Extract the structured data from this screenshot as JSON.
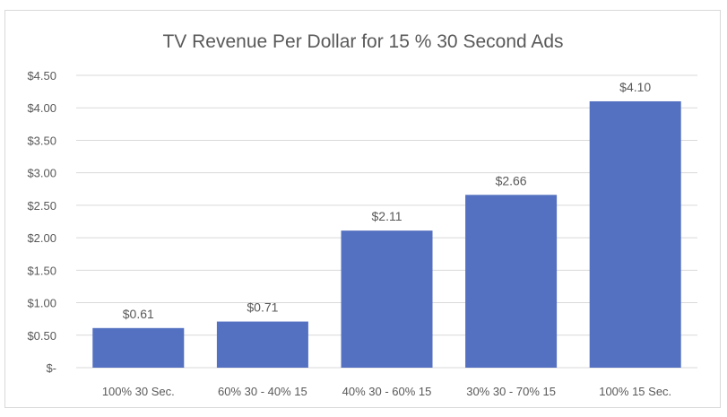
{
  "chart_data": {
    "type": "bar",
    "title": "TV Revenue Per Dollar for 15 % 30 Second Ads",
    "xlabel": "",
    "ylabel": "",
    "categories": [
      "100% 30 Sec.",
      "60% 30 - 40% 15",
      "40% 30 - 60% 15",
      "30% 30 - 70% 15",
      "100% 15 Sec."
    ],
    "values": [
      0.61,
      0.71,
      2.11,
      2.66,
      4.1
    ],
    "data_labels": [
      "$0.61",
      "$0.71",
      "$2.11",
      "$2.66",
      "$4.10"
    ],
    "ylim": [
      0,
      4.5
    ],
    "yticks": [
      0,
      0.5,
      1,
      1.5,
      2,
      2.5,
      3,
      3.5,
      4,
      4.5
    ],
    "ytick_labels": [
      "$-",
      "$0.50",
      "$1.00",
      "$1.50",
      "$2.00",
      "$2.50",
      "$3.00",
      "$3.50",
      "$4.00",
      "$4.50"
    ],
    "grid": true,
    "legend": "none",
    "colors": {
      "bar": "#5470c0",
      "grid": "#d9d9d9",
      "text": "#595959"
    }
  }
}
